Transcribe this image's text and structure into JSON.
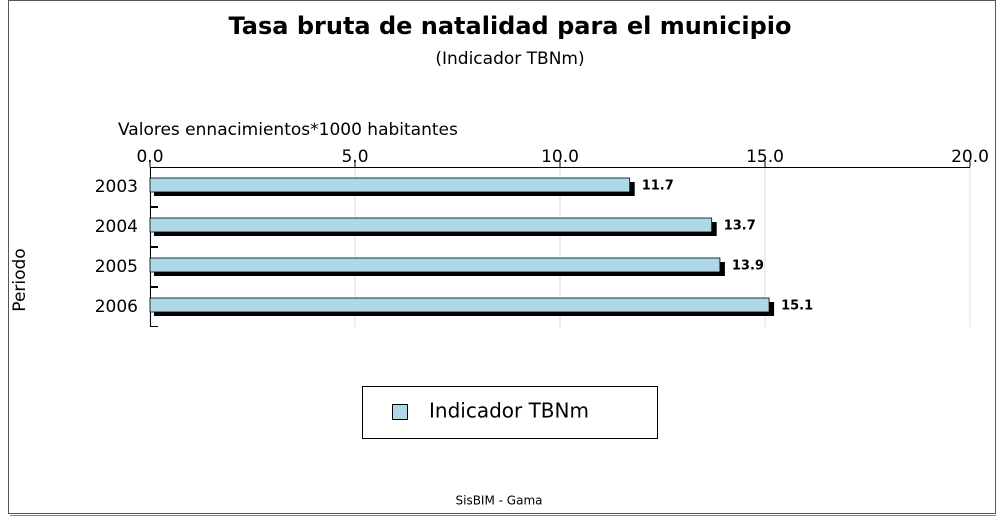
{
  "chart_data": {
    "type": "bar",
    "orientation": "horizontal",
    "title": "Tasa bruta de natalidad para el municipio",
    "subtitle": "(Indicador TBNm)",
    "x_label": "Valores ennacimientos*1000 habitantes",
    "y_label": "Periodo",
    "categories": [
      "2003",
      "2004",
      "2005",
      "2006"
    ],
    "series": [
      {
        "name": "Indicador TBNm",
        "color": "#add8e6",
        "values": [
          11.7,
          13.7,
          13.9,
          15.1
        ]
      }
    ],
    "xlim": [
      0,
      20
    ],
    "xticks": [
      {
        "value": 0,
        "label": "0.0"
      },
      {
        "value": 5,
        "label": "5.0"
      },
      {
        "value": 10,
        "label": "10.0"
      },
      {
        "value": 15,
        "label": "15.0"
      },
      {
        "value": 20,
        "label": "20.0"
      }
    ],
    "grid": true,
    "legend": "bottom",
    "footer": "SisBIM - Gama"
  }
}
